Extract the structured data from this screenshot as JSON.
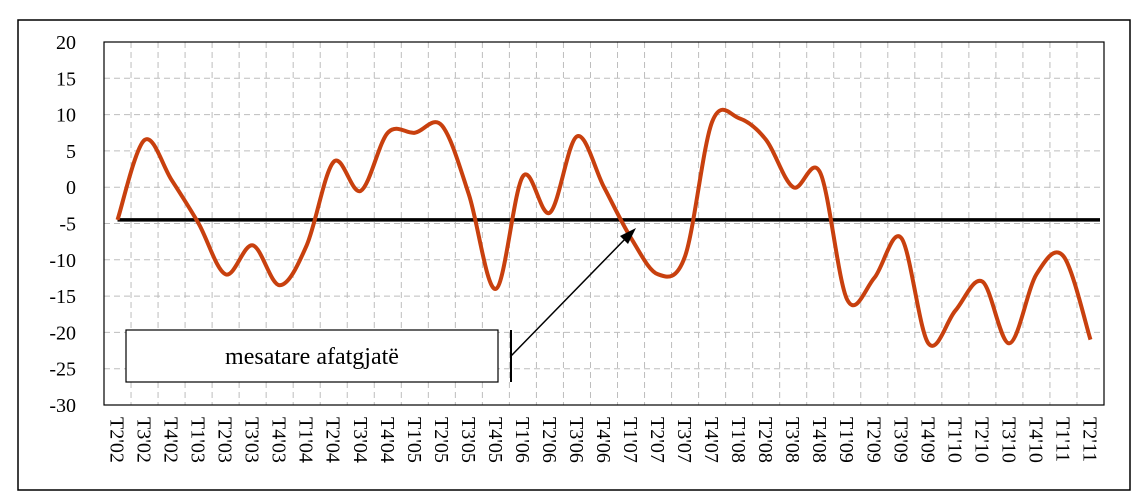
{
  "chart_data": {
    "type": "line",
    "categories": [
      "T2'02",
      "T3'02",
      "T4'02",
      "T1'03",
      "T2'03",
      "T3'03",
      "T4'03",
      "T1'04",
      "T2'04",
      "T3'04",
      "T4'04",
      "T1'05",
      "T2'05",
      "T3'05",
      "T4'05",
      "T1'06",
      "T2'06",
      "T3'06",
      "T4'06",
      "T1'07",
      "T2'07",
      "T3'07",
      "T4'07",
      "T1'08",
      "T2'08",
      "T3'08",
      "T4'08",
      "T1'09",
      "T2'09",
      "T3'09",
      "T4'09",
      "T1'10",
      "T2'10",
      "T3'10",
      "T4'10",
      "T1'11",
      "T2'11"
    ],
    "series": [
      {
        "color": "#c8400e",
        "values": [
          -4.5,
          6.5,
          1,
          -5,
          -12,
          -8,
          -13.5,
          -8,
          3.5,
          -0.5,
          7.5,
          7.5,
          8.5,
          -1,
          -14,
          1.5,
          -3.5,
          7,
          0,
          -7,
          -12,
          -9.5,
          9,
          9.5,
          6.5,
          0,
          2,
          -15.5,
          -12.5,
          -7,
          -21.5,
          -17,
          -13,
          -21.5,
          -12,
          -9.5,
          -21
        ]
      }
    ],
    "average": {
      "label": "mesatare afatgjatë",
      "value": -4.5,
      "color": "#000000"
    },
    "ylim": [
      -30,
      20
    ],
    "yticks": [
      -30,
      -25,
      -20,
      -15,
      -10,
      -5,
      0,
      5,
      10,
      15,
      20
    ],
    "grid": true
  }
}
